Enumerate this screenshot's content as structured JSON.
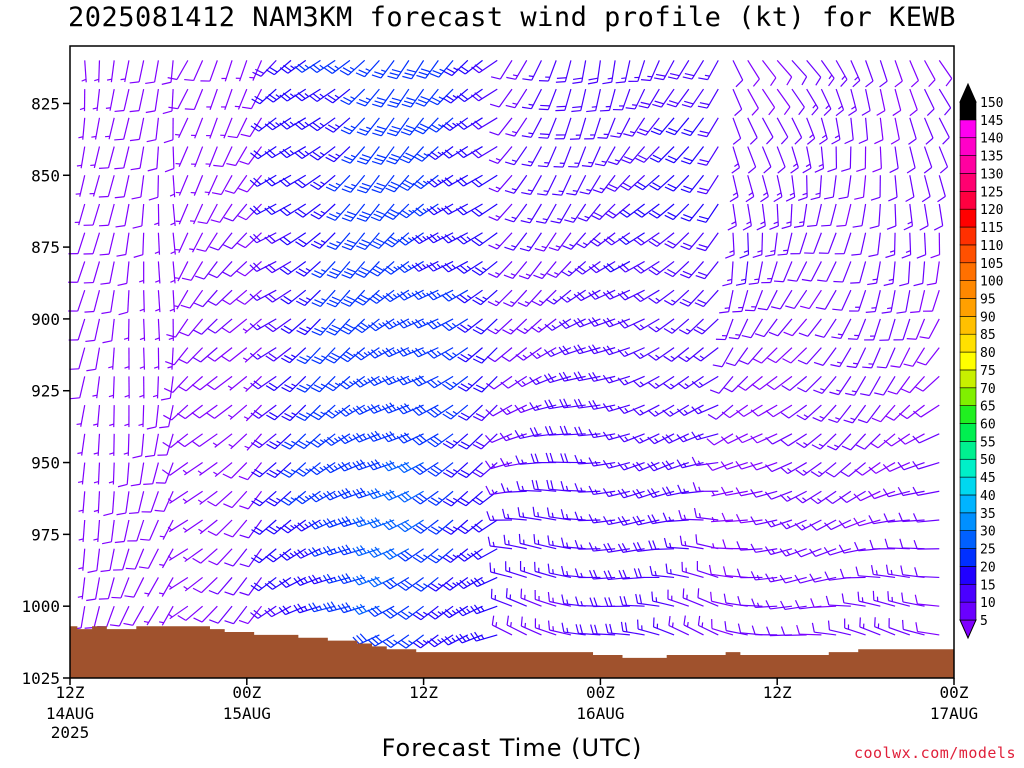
{
  "chart_data": {
    "type": "wind-barb",
    "title": "2025081412 NAM3KM forecast wind profile (kt) for KEWB",
    "xlabel": "Forecast Time (UTC)",
    "ylabel": "",
    "units": "kt",
    "y_axis": {
      "ticks": [
        825,
        850,
        875,
        900,
        925,
        950,
        975,
        1000,
        1025
      ],
      "range": [
        805,
        1025
      ],
      "inverted": false
    },
    "x_axis": {
      "range_hours": [
        0,
        60
      ],
      "ticks": [
        {
          "hour": 0,
          "label": "12Z",
          "date": "14AUG",
          "year": "2025"
        },
        {
          "hour": 12,
          "label": "00Z",
          "date": "15AUG",
          "year": ""
        },
        {
          "hour": 24,
          "label": "12Z",
          "date": "",
          "year": ""
        },
        {
          "hour": 36,
          "label": "00Z",
          "date": "16AUG",
          "year": ""
        },
        {
          "hour": 48,
          "label": "12Z",
          "date": "",
          "year": ""
        },
        {
          "hour": 60,
          "label": "00Z",
          "date": "17AUG",
          "year": ""
        }
      ]
    },
    "colorbar": {
      "levels": [
        5,
        10,
        15,
        20,
        25,
        30,
        35,
        40,
        45,
        50,
        55,
        60,
        65,
        70,
        75,
        80,
        85,
        90,
        95,
        100,
        105,
        110,
        115,
        120,
        125,
        130,
        135,
        140,
        145,
        150
      ],
      "colors": [
        "#8000ff",
        "#6a00ff",
        "#4a00ff",
        "#2000ff",
        "#0030ff",
        "#0060ff",
        "#0090ff",
        "#00b4ff",
        "#00d8f0",
        "#00f0c8",
        "#00f090",
        "#00f050",
        "#20f020",
        "#80f000",
        "#c8f000",
        "#ffff00",
        "#ffe000",
        "#ffc000",
        "#ffa000",
        "#ff8800",
        "#ff7000",
        "#ff5000",
        "#ff3000",
        "#ff0000",
        "#ff0040",
        "#ff0070",
        "#ff00a0",
        "#ff00c8",
        "#ff00f0",
        "#000000"
      ]
    },
    "terrain_color": "#a0522d",
    "surface_pressure": [
      1007,
      1008,
      1007,
      1008,
      1008,
      1007,
      1007,
      1007,
      1007,
      1007,
      1008,
      1009,
      1009,
      1010,
      1010,
      1010,
      1011,
      1011,
      1012,
      1012,
      1013,
      1014,
      1015,
      1015,
      1016,
      1016,
      1016,
      1016,
      1016,
      1016,
      1016,
      1016,
      1016,
      1016,
      1016,
      1016,
      1017,
      1017,
      1018,
      1018,
      1018,
      1017,
      1017,
      1017,
      1017,
      1016,
      1017,
      1017,
      1017,
      1017,
      1017,
      1017,
      1016,
      1016,
      1015,
      1015,
      1015,
      1015,
      1015,
      1015,
      1015
    ],
    "levels_hpa": [
      810,
      820,
      830,
      840,
      850,
      860,
      870,
      880,
      890,
      900,
      910,
      920,
      930,
      940,
      950,
      960,
      970,
      980,
      990,
      1000,
      1010
    ],
    "wind_model": {
      "base_direction_deg": 225,
      "periods": [
        {
          "hours": [
            0,
            8
          ],
          "speed_kt": [
            5,
            8
          ],
          "direction_deg": [
            180,
            200
          ]
        },
        {
          "hours": [
            8,
            14
          ],
          "speed_kt": [
            5,
            9
          ],
          "direction_deg": [
            210,
            230
          ]
        },
        {
          "hours": [
            14,
            30
          ],
          "speed_kt": [
            10,
            28
          ],
          "direction_deg": [
            225,
            245
          ]
        },
        {
          "hours": [
            30,
            45
          ],
          "speed_kt": [
            8,
            18
          ],
          "direction_deg": [
            200,
            285
          ]
        },
        {
          "hours": [
            45,
            60
          ],
          "speed_kt": [
            6,
            12
          ],
          "direction_deg": [
            150,
            280
          ]
        }
      ],
      "max_low_level_jet_kt": 30
    }
  }
}
